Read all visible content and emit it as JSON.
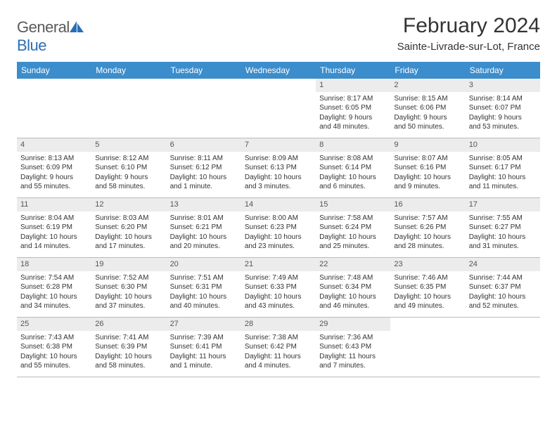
{
  "logo": {
    "text1": "General",
    "text2": "Blue"
  },
  "title": "February 2024",
  "location": "Sainte-Livrade-sur-Lot, France",
  "header_bg": "#3c8dcc",
  "daynum_bg": "#ececec",
  "weekdays": [
    "Sunday",
    "Monday",
    "Tuesday",
    "Wednesday",
    "Thursday",
    "Friday",
    "Saturday"
  ],
  "weeks": [
    [
      null,
      null,
      null,
      null,
      {
        "n": "1",
        "sr": "Sunrise: 8:17 AM",
        "ss": "Sunset: 6:05 PM",
        "d1": "Daylight: 9 hours",
        "d2": "and 48 minutes."
      },
      {
        "n": "2",
        "sr": "Sunrise: 8:15 AM",
        "ss": "Sunset: 6:06 PM",
        "d1": "Daylight: 9 hours",
        "d2": "and 50 minutes."
      },
      {
        "n": "3",
        "sr": "Sunrise: 8:14 AM",
        "ss": "Sunset: 6:07 PM",
        "d1": "Daylight: 9 hours",
        "d2": "and 53 minutes."
      }
    ],
    [
      {
        "n": "4",
        "sr": "Sunrise: 8:13 AM",
        "ss": "Sunset: 6:09 PM",
        "d1": "Daylight: 9 hours",
        "d2": "and 55 minutes."
      },
      {
        "n": "5",
        "sr": "Sunrise: 8:12 AM",
        "ss": "Sunset: 6:10 PM",
        "d1": "Daylight: 9 hours",
        "d2": "and 58 minutes."
      },
      {
        "n": "6",
        "sr": "Sunrise: 8:11 AM",
        "ss": "Sunset: 6:12 PM",
        "d1": "Daylight: 10 hours",
        "d2": "and 1 minute."
      },
      {
        "n": "7",
        "sr": "Sunrise: 8:09 AM",
        "ss": "Sunset: 6:13 PM",
        "d1": "Daylight: 10 hours",
        "d2": "and 3 minutes."
      },
      {
        "n": "8",
        "sr": "Sunrise: 8:08 AM",
        "ss": "Sunset: 6:14 PM",
        "d1": "Daylight: 10 hours",
        "d2": "and 6 minutes."
      },
      {
        "n": "9",
        "sr": "Sunrise: 8:07 AM",
        "ss": "Sunset: 6:16 PM",
        "d1": "Daylight: 10 hours",
        "d2": "and 9 minutes."
      },
      {
        "n": "10",
        "sr": "Sunrise: 8:05 AM",
        "ss": "Sunset: 6:17 PM",
        "d1": "Daylight: 10 hours",
        "d2": "and 11 minutes."
      }
    ],
    [
      {
        "n": "11",
        "sr": "Sunrise: 8:04 AM",
        "ss": "Sunset: 6:19 PM",
        "d1": "Daylight: 10 hours",
        "d2": "and 14 minutes."
      },
      {
        "n": "12",
        "sr": "Sunrise: 8:03 AM",
        "ss": "Sunset: 6:20 PM",
        "d1": "Daylight: 10 hours",
        "d2": "and 17 minutes."
      },
      {
        "n": "13",
        "sr": "Sunrise: 8:01 AM",
        "ss": "Sunset: 6:21 PM",
        "d1": "Daylight: 10 hours",
        "d2": "and 20 minutes."
      },
      {
        "n": "14",
        "sr": "Sunrise: 8:00 AM",
        "ss": "Sunset: 6:23 PM",
        "d1": "Daylight: 10 hours",
        "d2": "and 23 minutes."
      },
      {
        "n": "15",
        "sr": "Sunrise: 7:58 AM",
        "ss": "Sunset: 6:24 PM",
        "d1": "Daylight: 10 hours",
        "d2": "and 25 minutes."
      },
      {
        "n": "16",
        "sr": "Sunrise: 7:57 AM",
        "ss": "Sunset: 6:26 PM",
        "d1": "Daylight: 10 hours",
        "d2": "and 28 minutes."
      },
      {
        "n": "17",
        "sr": "Sunrise: 7:55 AM",
        "ss": "Sunset: 6:27 PM",
        "d1": "Daylight: 10 hours",
        "d2": "and 31 minutes."
      }
    ],
    [
      {
        "n": "18",
        "sr": "Sunrise: 7:54 AM",
        "ss": "Sunset: 6:28 PM",
        "d1": "Daylight: 10 hours",
        "d2": "and 34 minutes."
      },
      {
        "n": "19",
        "sr": "Sunrise: 7:52 AM",
        "ss": "Sunset: 6:30 PM",
        "d1": "Daylight: 10 hours",
        "d2": "and 37 minutes."
      },
      {
        "n": "20",
        "sr": "Sunrise: 7:51 AM",
        "ss": "Sunset: 6:31 PM",
        "d1": "Daylight: 10 hours",
        "d2": "and 40 minutes."
      },
      {
        "n": "21",
        "sr": "Sunrise: 7:49 AM",
        "ss": "Sunset: 6:33 PM",
        "d1": "Daylight: 10 hours",
        "d2": "and 43 minutes."
      },
      {
        "n": "22",
        "sr": "Sunrise: 7:48 AM",
        "ss": "Sunset: 6:34 PM",
        "d1": "Daylight: 10 hours",
        "d2": "and 46 minutes."
      },
      {
        "n": "23",
        "sr": "Sunrise: 7:46 AM",
        "ss": "Sunset: 6:35 PM",
        "d1": "Daylight: 10 hours",
        "d2": "and 49 minutes."
      },
      {
        "n": "24",
        "sr": "Sunrise: 7:44 AM",
        "ss": "Sunset: 6:37 PM",
        "d1": "Daylight: 10 hours",
        "d2": "and 52 minutes."
      }
    ],
    [
      {
        "n": "25",
        "sr": "Sunrise: 7:43 AM",
        "ss": "Sunset: 6:38 PM",
        "d1": "Daylight: 10 hours",
        "d2": "and 55 minutes."
      },
      {
        "n": "26",
        "sr": "Sunrise: 7:41 AM",
        "ss": "Sunset: 6:39 PM",
        "d1": "Daylight: 10 hours",
        "d2": "and 58 minutes."
      },
      {
        "n": "27",
        "sr": "Sunrise: 7:39 AM",
        "ss": "Sunset: 6:41 PM",
        "d1": "Daylight: 11 hours",
        "d2": "and 1 minute."
      },
      {
        "n": "28",
        "sr": "Sunrise: 7:38 AM",
        "ss": "Sunset: 6:42 PM",
        "d1": "Daylight: 11 hours",
        "d2": "and 4 minutes."
      },
      {
        "n": "29",
        "sr": "Sunrise: 7:36 AM",
        "ss": "Sunset: 6:43 PM",
        "d1": "Daylight: 11 hours",
        "d2": "and 7 minutes."
      },
      null,
      null
    ]
  ]
}
